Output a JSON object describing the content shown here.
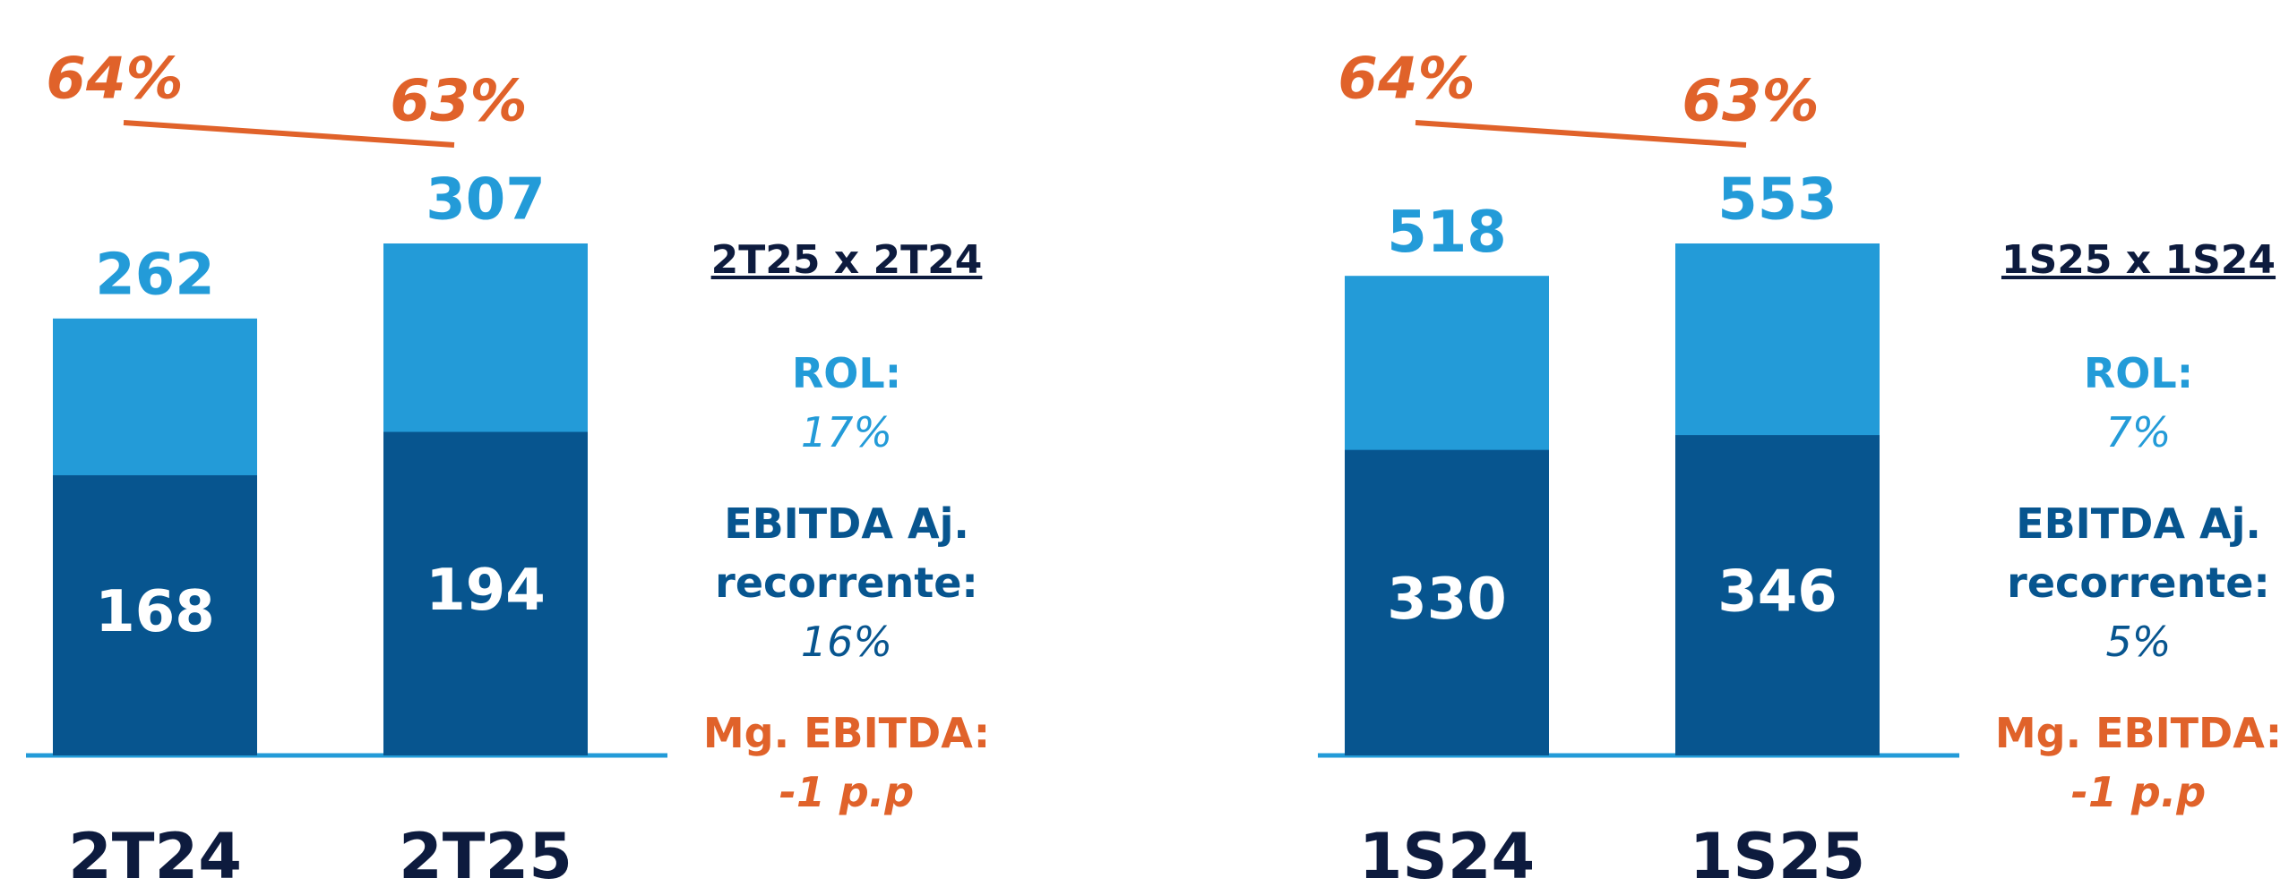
{
  "chart_data": [
    {
      "type": "bar",
      "categories": [
        "2T24",
        "2T25"
      ],
      "series": [
        {
          "color": "#239bd8",
          "values": [
            262,
            307
          ]
        },
        {
          "color": "#07558f",
          "values": [
            168,
            194
          ]
        },
        {
          "type": "line",
          "color": "#e0622a",
          "values": [
            64,
            63
          ],
          "value_labels": [
            "64%",
            "63%"
          ]
        }
      ],
      "comparison": {
        "title": "2T25 x 2T24",
        "items": [
          {
            "label": "ROL:",
            "value": "17%"
          },
          {
            "label": "EBITDA Aj. recorrente:",
            "value": "16%"
          },
          {
            "label": "Mg. EBITDA:",
            "value": "-1 p.p"
          }
        ]
      }
    },
    {
      "type": "bar",
      "categories": [
        "1S24",
        "1S25"
      ],
      "series": [
        {
          "color": "#239bd8",
          "values": [
            518,
            553
          ]
        },
        {
          "color": "#07558f",
          "values": [
            330,
            346
          ]
        },
        {
          "type": "line",
          "color": "#e0622a",
          "values": [
            64,
            63
          ],
          "value_labels": [
            "64%",
            "63%"
          ]
        }
      ],
      "comparison": {
        "title": "1S25 x 1S24",
        "items": [
          {
            "label": "ROL:",
            "value": "7%"
          },
          {
            "label": "EBITDA Aj. recorrente:",
            "value": "5%"
          },
          {
            "label": "Mg. EBITDA:",
            "value": "-1 p.p"
          }
        ]
      }
    }
  ]
}
